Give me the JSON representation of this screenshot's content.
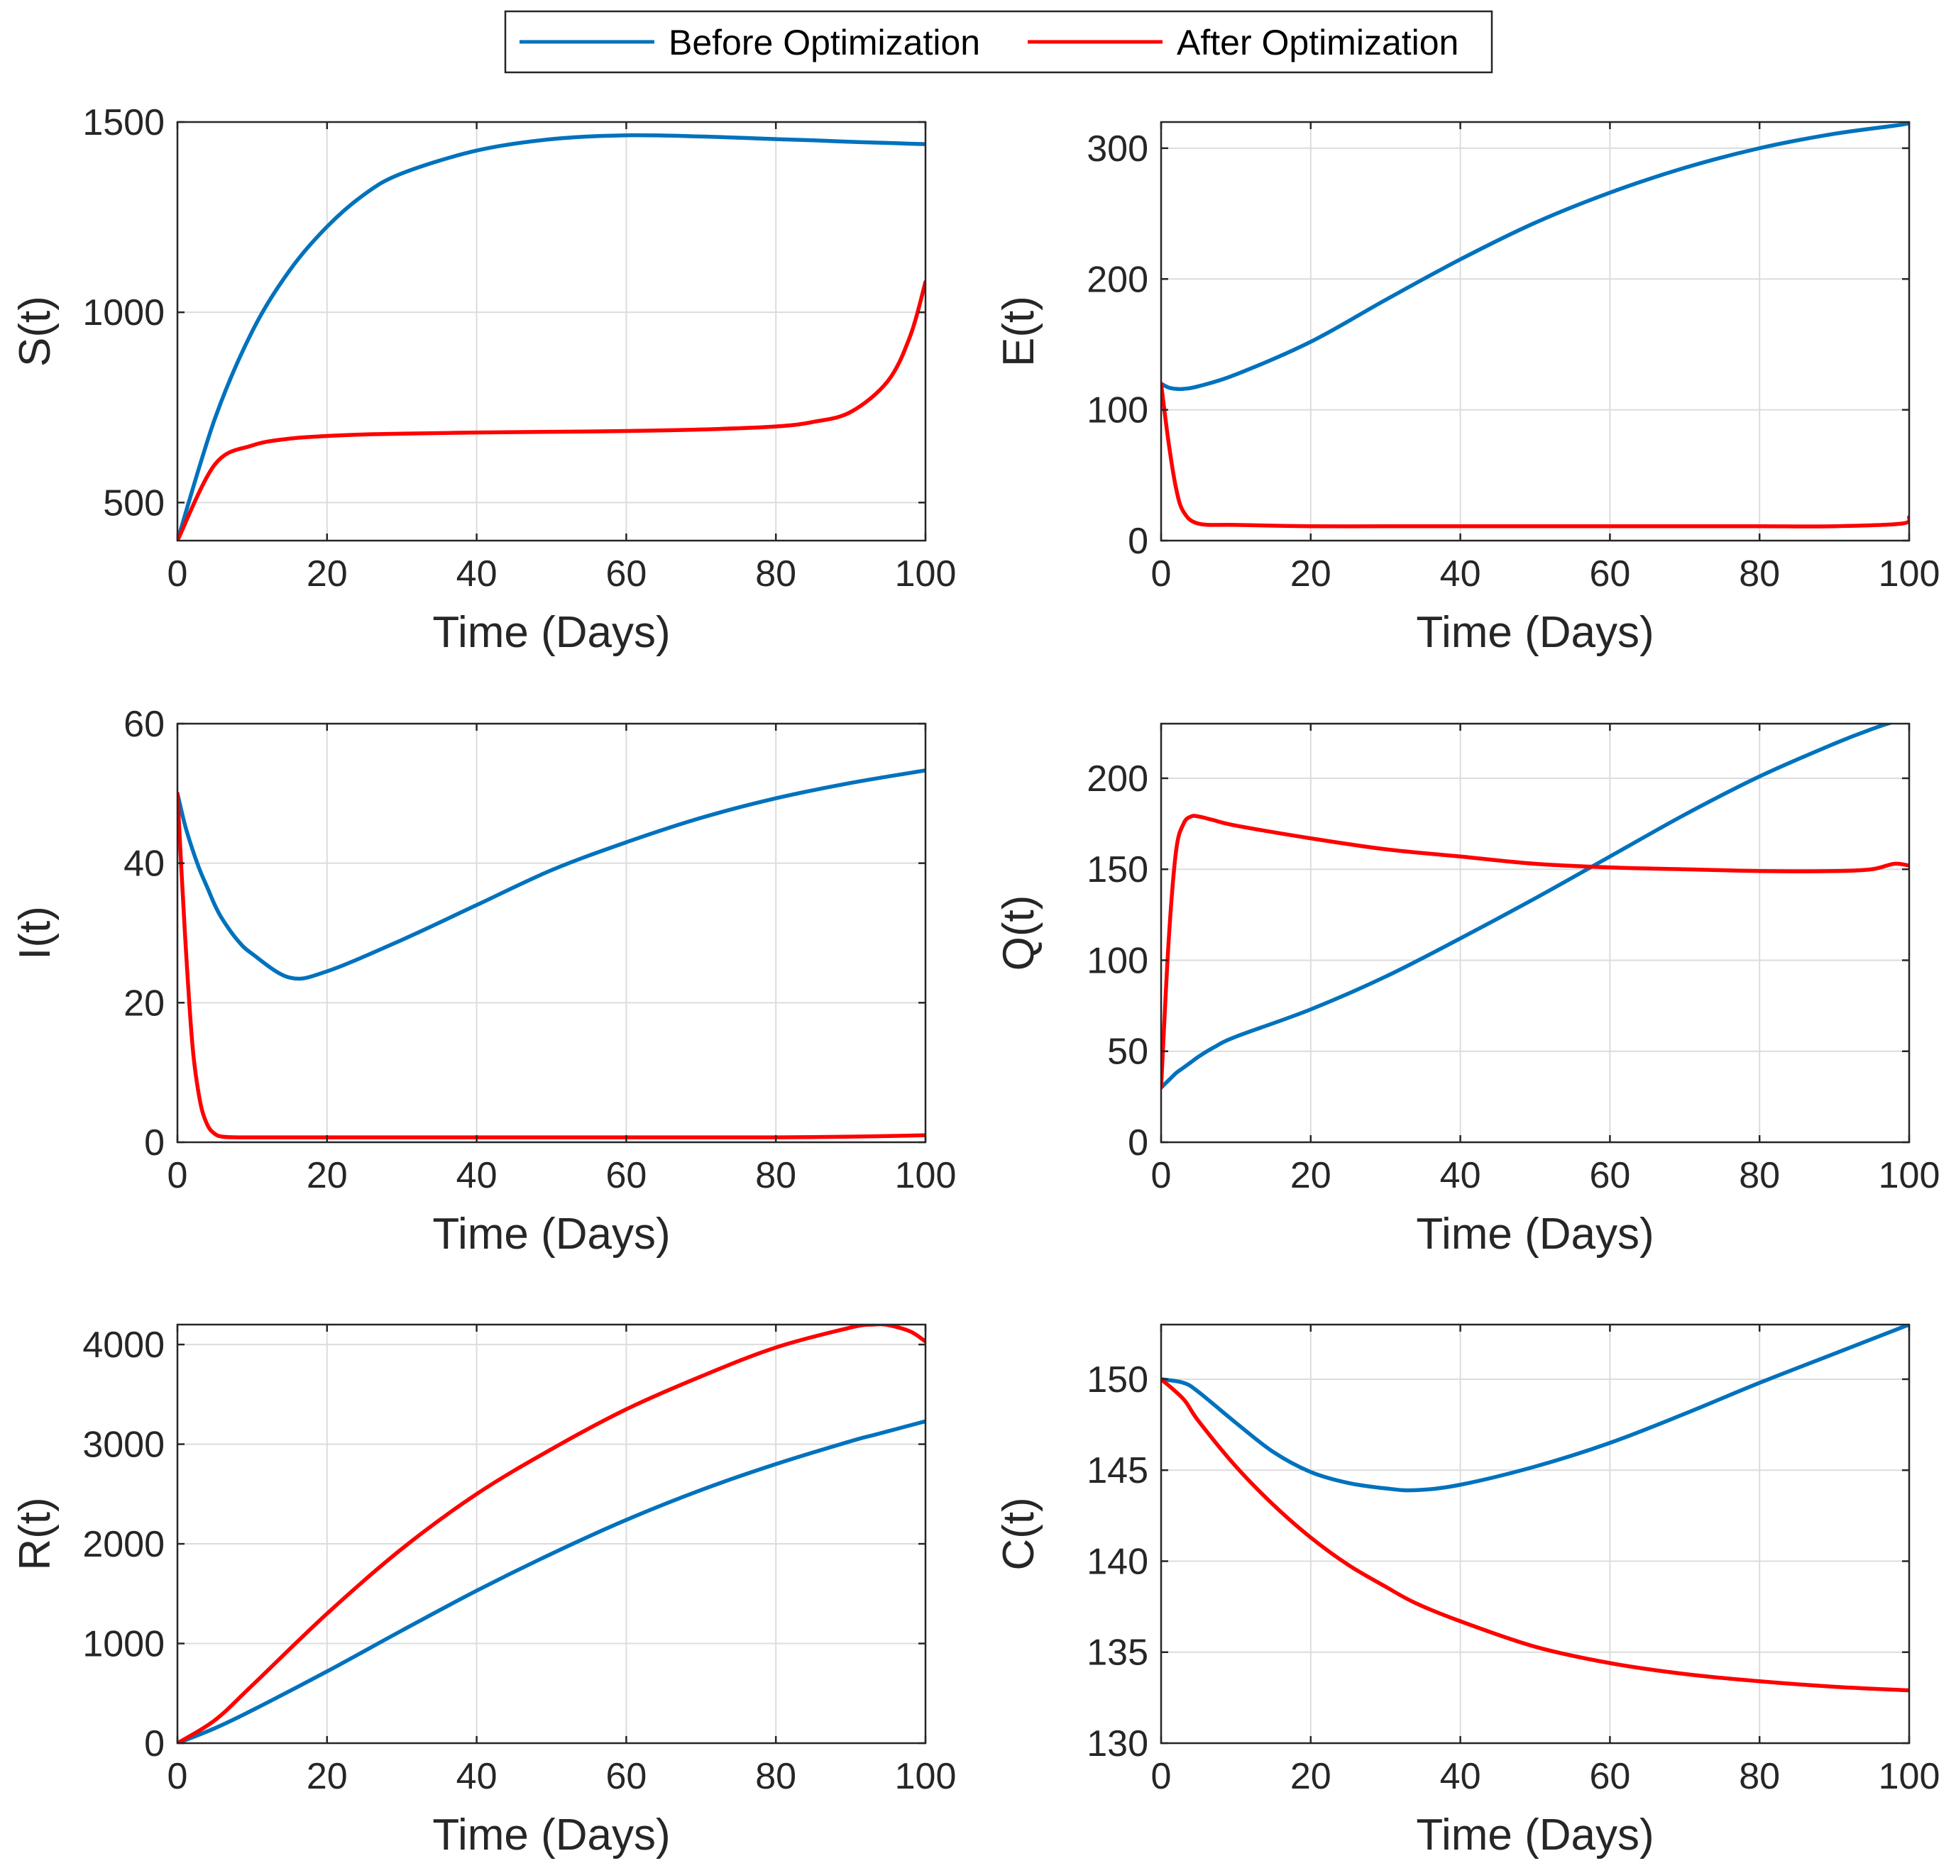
{
  "legend": {
    "items": [
      {
        "label": "Before Optimization",
        "color": "#0072BD"
      },
      {
        "label": "After Optimization",
        "color": "#FF0000"
      }
    ]
  },
  "chart_data": [
    {
      "type": "line",
      "ylabel": "S(t)",
      "xlabel": "Time (Days)",
      "xlim": [
        0,
        100
      ],
      "ylim": [
        400,
        1500
      ],
      "xticks": [
        0,
        20,
        40,
        60,
        80,
        100
      ],
      "yticks": [
        500,
        1000,
        1500
      ],
      "grid": true,
      "x": [
        0,
        5,
        10,
        15,
        20,
        25,
        30,
        40,
        50,
        60,
        70,
        80,
        85,
        90,
        95,
        98,
        100
      ],
      "series": [
        {
          "name": "Before Optimization",
          "color": "#0072BD",
          "values": [
            400,
            720,
            950,
            1110,
            1225,
            1310,
            1365,
            1425,
            1455,
            1465,
            1462,
            1455,
            1452,
            1448,
            1445,
            1443,
            1442
          ]
        },
        {
          "name": "After Optimization",
          "color": "#FF0000",
          "values": [
            400,
            600,
            650,
            668,
            675,
            679,
            681,
            684,
            686,
            688,
            692,
            700,
            712,
            738,
            820,
            940,
            1080
          ]
        }
      ]
    },
    {
      "type": "line",
      "ylabel": "E(t)",
      "xlabel": "Time (Days)",
      "xlim": [
        0,
        100
      ],
      "ylim": [
        0,
        320
      ],
      "xticks": [
        0,
        20,
        40,
        60,
        80,
        100
      ],
      "yticks": [
        0,
        100,
        200,
        300
      ],
      "grid": true,
      "x": [
        0,
        1,
        2,
        3,
        5,
        10,
        20,
        30,
        40,
        50,
        60,
        70,
        80,
        90,
        99,
        100
      ],
      "series": [
        {
          "name": "Before Optimization",
          "color": "#0072BD",
          "values": [
            120,
            117,
            116,
            116,
            118,
            127,
            152,
            184,
            215,
            243,
            266,
            285,
            300,
            311,
            318,
            320
          ]
        },
        {
          "name": "After Optimization",
          "color": "#FF0000",
          "values": [
            120,
            75,
            40,
            22,
            13,
            12,
            11,
            11,
            11,
            11,
            11,
            11,
            11,
            11,
            13,
            18
          ]
        }
      ]
    },
    {
      "type": "line",
      "ylabel": "I(t)",
      "xlabel": "Time (Days)",
      "xlim": [
        0,
        100
      ],
      "ylim": [
        0,
        60
      ],
      "xticks": [
        0,
        20,
        40,
        60,
        80,
        100
      ],
      "yticks": [
        0,
        20,
        40,
        60
      ],
      "grid": true,
      "x": [
        0,
        1,
        2,
        3,
        4,
        5,
        6,
        8,
        10,
        15,
        20,
        30,
        40,
        50,
        60,
        70,
        80,
        90,
        100
      ],
      "series": [
        {
          "name": "Before Optimization",
          "color": "#0072BD",
          "values": [
            50,
            45.5,
            42,
            39,
            36.5,
            34,
            32,
            29,
            27,
            23.6,
            24.5,
            29,
            34,
            39,
            43,
            46.5,
            49.3,
            51.5,
            53.3
          ]
        },
        {
          "name": "After Optimization",
          "color": "#FF0000",
          "values": [
            50,
            30,
            14,
            6,
            2.5,
            1.2,
            0.8,
            0.7,
            0.7,
            0.7,
            0.7,
            0.7,
            0.7,
            0.7,
            0.7,
            0.7,
            0.7,
            0.8,
            1.0
          ]
        }
      ]
    },
    {
      "type": "line",
      "ylabel": "Q(t)",
      "xlabel": "Time (Days)",
      "xlim": [
        0,
        100
      ],
      "ylim": [
        0,
        230
      ],
      "xticks": [
        0,
        20,
        40,
        60,
        80,
        100
      ],
      "yticks": [
        0,
        50,
        100,
        150,
        200
      ],
      "grid": true,
      "x": [
        0,
        1,
        2,
        3,
        4,
        5,
        7,
        10,
        20,
        30,
        40,
        50,
        60,
        70,
        80,
        90,
        95,
        98,
        100
      ],
      "series": [
        {
          "name": "Before Optimization",
          "color": "#0072BD",
          "values": [
            30,
            34,
            38,
            41,
            44,
            47,
            52,
            58,
            73,
            91,
            112,
            134,
            157,
            180,
            201,
            219,
            227,
            231,
            232
          ]
        },
        {
          "name": "After Optimization",
          "color": "#FF0000",
          "values": [
            30,
            110,
            160,
            175,
            179,
            179,
            177,
            174,
            167,
            161,
            157,
            153,
            151,
            150,
            149,
            149,
            150,
            153,
            152
          ]
        }
      ]
    },
    {
      "type": "line",
      "ylabel": "R(t)",
      "xlabel": "Time (Days)",
      "xlim": [
        0,
        100
      ],
      "ylim": [
        0,
        4200
      ],
      "xticks": [
        0,
        20,
        40,
        60,
        80,
        100
      ],
      "yticks": [
        0,
        1000,
        2000,
        3000,
        4000
      ],
      "grid": true,
      "x": [
        0,
        5,
        10,
        20,
        30,
        40,
        50,
        60,
        70,
        80,
        90,
        93,
        95,
        98,
        100
      ],
      "series": [
        {
          "name": "Before Optimization",
          "color": "#0072BD",
          "values": [
            0,
            150,
            330,
            720,
            1130,
            1530,
            1900,
            2240,
            2540,
            2800,
            3030,
            3090,
            3130,
            3190,
            3230
          ]
        },
        {
          "name": "After Optimization",
          "color": "#FF0000",
          "values": [
            0,
            230,
            580,
            1300,
            1950,
            2500,
            2950,
            3350,
            3680,
            3970,
            4170,
            4200,
            4195,
            4130,
            4030
          ]
        }
      ]
    },
    {
      "type": "line",
      "ylabel": "C(t)",
      "xlabel": "Time (Days)",
      "xlim": [
        0,
        100
      ],
      "ylim": [
        130,
        153
      ],
      "xticks": [
        0,
        20,
        40,
        60,
        80,
        100
      ],
      "yticks": [
        130,
        135,
        140,
        145,
        150
      ],
      "grid": true,
      "x": [
        0,
        3,
        5,
        10,
        15,
        20,
        25,
        30,
        34,
        40,
        50,
        60,
        70,
        80,
        90,
        100
      ],
      "series": [
        {
          "name": "Before Optimization",
          "color": "#0072BD",
          "values": [
            150,
            149.8,
            149.3,
            147.6,
            146,
            144.9,
            144.3,
            144,
            143.9,
            144.2,
            145.2,
            146.5,
            148.1,
            149.8,
            151.4,
            153
          ]
        },
        {
          "name": "After Optimization",
          "color": "#FF0000",
          "values": [
            150,
            148.9,
            147.7,
            145.2,
            143.1,
            141.3,
            139.8,
            138.6,
            137.7,
            136.7,
            135.3,
            134.4,
            133.8,
            133.4,
            133.1,
            132.9
          ]
        }
      ]
    }
  ]
}
